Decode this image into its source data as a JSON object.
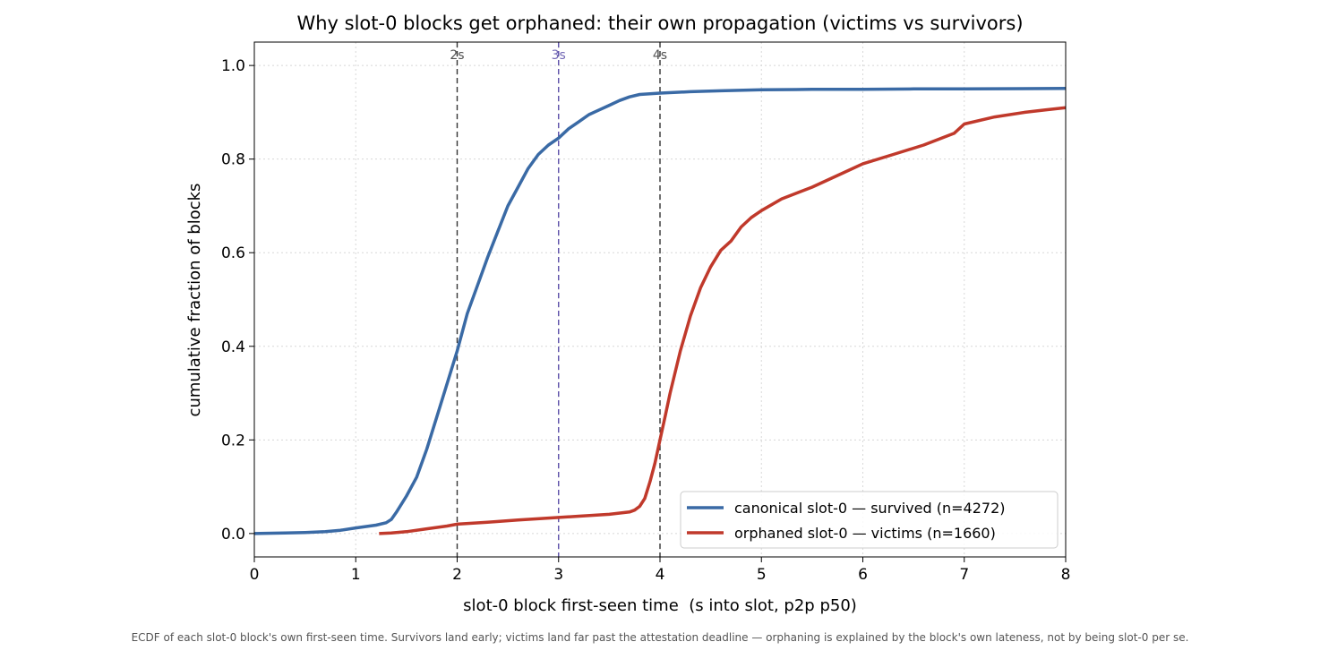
{
  "chart_data": {
    "type": "line",
    "title": "Why slot-0 blocks get orphaned: their own propagation (victims vs survivors)",
    "xlabel": "slot-0 block first-seen time  (s into slot, p2p p50)",
    "ylabel": "cumulative fraction of blocks",
    "caption": "ECDF of each slot-0 block's own first-seen time. Survivors land early; victims land far past the attestation deadline — orphaning is explained by the block's own lateness, not by being slot-0 per se.",
    "xlim": [
      0,
      8
    ],
    "ylim": [
      -0.05,
      1.05
    ],
    "x_ticks": [
      0,
      1,
      2,
      3,
      4,
      5,
      6,
      7,
      8
    ],
    "y_ticks": [
      0.0,
      0.2,
      0.4,
      0.6,
      0.8,
      1.0
    ],
    "x_tick_labels": [
      "0",
      "1",
      "2",
      "3",
      "4",
      "5",
      "6",
      "7",
      "8"
    ],
    "y_tick_labels": [
      "0.0",
      "0.2",
      "0.4",
      "0.6",
      "0.8",
      "1.0"
    ],
    "grid": true,
    "legend_position": "lower-right",
    "vlines": [
      {
        "x": 2,
        "label": "2s",
        "color": "#333333"
      },
      {
        "x": 3,
        "label": "3s",
        "color": "#5b4ea8"
      },
      {
        "x": 4,
        "label": "4s",
        "color": "#333333"
      }
    ],
    "series": [
      {
        "name": "canonical slot-0 — survived (n=4272)",
        "color": "#3a6aa5",
        "points": [
          [
            0.0,
            0.0
          ],
          [
            0.3,
            0.001
          ],
          [
            0.5,
            0.002
          ],
          [
            0.7,
            0.004
          ],
          [
            0.85,
            0.007
          ],
          [
            1.0,
            0.012
          ],
          [
            1.2,
            0.018
          ],
          [
            1.3,
            0.023
          ],
          [
            1.35,
            0.03
          ],
          [
            1.4,
            0.045
          ],
          [
            1.5,
            0.08
          ],
          [
            1.6,
            0.12
          ],
          [
            1.7,
            0.18
          ],
          [
            1.8,
            0.25
          ],
          [
            1.9,
            0.32
          ],
          [
            2.0,
            0.39
          ],
          [
            2.1,
            0.47
          ],
          [
            2.2,
            0.53
          ],
          [
            2.3,
            0.59
          ],
          [
            2.4,
            0.645
          ],
          [
            2.5,
            0.7
          ],
          [
            2.6,
            0.74
          ],
          [
            2.7,
            0.78
          ],
          [
            2.8,
            0.81
          ],
          [
            2.9,
            0.83
          ],
          [
            3.0,
            0.845
          ],
          [
            3.1,
            0.865
          ],
          [
            3.2,
            0.88
          ],
          [
            3.3,
            0.895
          ],
          [
            3.4,
            0.905
          ],
          [
            3.5,
            0.915
          ],
          [
            3.6,
            0.925
          ],
          [
            3.7,
            0.933
          ],
          [
            3.8,
            0.938
          ],
          [
            4.0,
            0.941
          ],
          [
            4.3,
            0.944
          ],
          [
            4.6,
            0.946
          ],
          [
            5.0,
            0.948
          ],
          [
            5.5,
            0.949
          ],
          [
            6.0,
            0.949
          ],
          [
            6.5,
            0.95
          ],
          [
            7.0,
            0.95
          ],
          [
            8.0,
            0.951
          ]
        ]
      },
      {
        "name": "orphaned slot-0 — victims (n=1660)",
        "color": "#c0392b",
        "points": [
          [
            1.23,
            0.0
          ],
          [
            1.35,
            0.001
          ],
          [
            1.5,
            0.004
          ],
          [
            1.7,
            0.01
          ],
          [
            1.9,
            0.016
          ],
          [
            2.0,
            0.02
          ],
          [
            2.3,
            0.024
          ],
          [
            2.6,
            0.029
          ],
          [
            2.9,
            0.033
          ],
          [
            3.2,
            0.037
          ],
          [
            3.5,
            0.041
          ],
          [
            3.7,
            0.046
          ],
          [
            3.75,
            0.05
          ],
          [
            3.8,
            0.058
          ],
          [
            3.85,
            0.075
          ],
          [
            3.9,
            0.11
          ],
          [
            3.95,
            0.15
          ],
          [
            4.0,
            0.2
          ],
          [
            4.05,
            0.25
          ],
          [
            4.1,
            0.3
          ],
          [
            4.2,
            0.39
          ],
          [
            4.3,
            0.465
          ],
          [
            4.4,
            0.525
          ],
          [
            4.5,
            0.57
          ],
          [
            4.6,
            0.605
          ],
          [
            4.7,
            0.625
          ],
          [
            4.8,
            0.655
          ],
          [
            4.9,
            0.675
          ],
          [
            5.0,
            0.69
          ],
          [
            5.2,
            0.715
          ],
          [
            5.5,
            0.74
          ],
          [
            5.8,
            0.77
          ],
          [
            6.0,
            0.79
          ],
          [
            6.3,
            0.81
          ],
          [
            6.6,
            0.83
          ],
          [
            6.9,
            0.855
          ],
          [
            7.0,
            0.875
          ],
          [
            7.3,
            0.89
          ],
          [
            7.6,
            0.9
          ],
          [
            7.8,
            0.905
          ],
          [
            8.0,
            0.91
          ]
        ]
      }
    ]
  }
}
